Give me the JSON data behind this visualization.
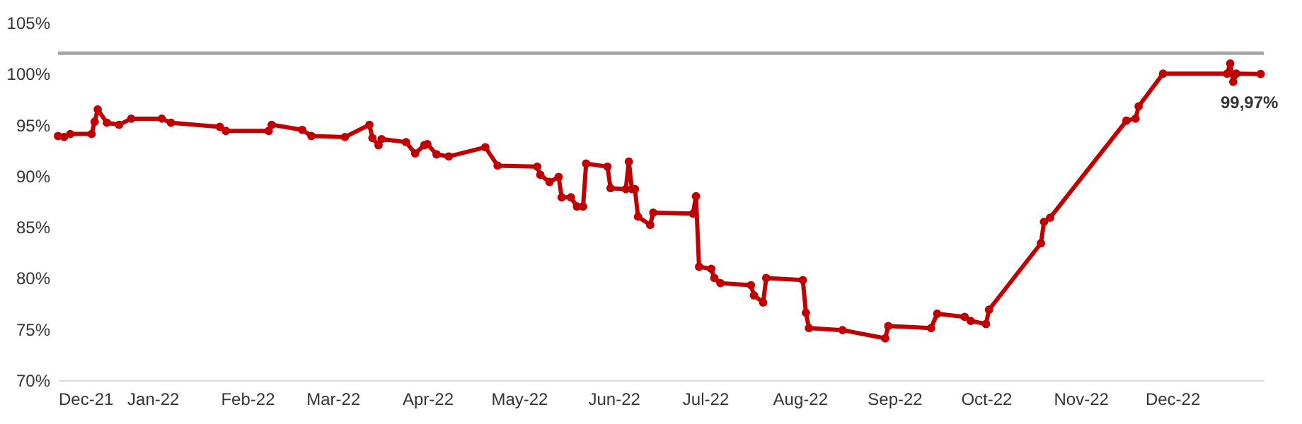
{
  "chart_data": {
    "type": "line",
    "color": "#c00000",
    "marker": "circle",
    "line_style": "solid",
    "grid": false,
    "x": [
      "2021-12-01",
      "2021-12-03",
      "2021-12-05",
      "2021-12-12",
      "2021-12-13",
      "2021-12-14",
      "2021-12-17",
      "2021-12-21",
      "2021-12-25",
      "2022-01-04",
      "2022-01-07",
      "2022-01-23",
      "2022-01-25",
      "2022-02-08",
      "2022-02-09",
      "2022-02-19",
      "2022-02-22",
      "2022-03-05",
      "2022-03-13",
      "2022-03-14",
      "2022-03-16",
      "2022-03-17",
      "2022-03-25",
      "2022-03-28",
      "2022-03-31",
      "2022-04-01",
      "2022-04-04",
      "2022-04-08",
      "2022-04-20",
      "2022-04-24",
      "2022-05-07",
      "2022-05-08",
      "2022-05-11",
      "2022-05-14",
      "2022-05-15",
      "2022-05-18",
      "2022-05-20",
      "2022-05-22",
      "2022-05-23",
      "2022-05-30",
      "2022-05-31",
      "2022-06-05",
      "2022-06-06",
      "2022-06-07",
      "2022-06-08",
      "2022-06-09",
      "2022-06-13",
      "2022-06-14",
      "2022-06-27",
      "2022-06-28",
      "2022-06-29",
      "2022-07-03",
      "2022-07-04",
      "2022-07-06",
      "2022-07-16",
      "2022-07-17",
      "2022-07-20",
      "2022-07-21",
      "2022-08-02",
      "2022-08-03",
      "2022-08-04",
      "2022-08-15",
      "2022-08-29",
      "2022-08-30",
      "2022-09-13",
      "2022-09-15",
      "2022-09-24",
      "2022-09-26",
      "2022-10-01",
      "2022-10-02",
      "2022-10-19",
      "2022-10-20",
      "2022-10-22",
      "2022-11-16",
      "2022-11-19",
      "2022-11-20",
      "2022-11-28",
      "2022-12-19",
      "2022-12-20",
      "2022-12-21",
      "2022-12-22",
      "2022-12-30"
    ],
    "values": [
      93.9,
      93.8,
      94.1,
      94.1,
      95.3,
      96.5,
      95.2,
      95.0,
      95.6,
      95.6,
      95.2,
      94.8,
      94.4,
      94.4,
      95.0,
      94.5,
      93.9,
      93.8,
      95.0,
      93.7,
      93.0,
      93.6,
      93.3,
      92.2,
      93.0,
      93.1,
      92.1,
      91.9,
      92.8,
      91.0,
      90.9,
      90.1,
      89.4,
      89.9,
      87.9,
      87.9,
      87.0,
      87.0,
      91.2,
      90.9,
      88.8,
      88.7,
      91.4,
      88.7,
      88.7,
      86.0,
      85.2,
      86.4,
      86.3,
      88.0,
      81.1,
      80.9,
      80.0,
      79.5,
      79.3,
      78.3,
      77.6,
      80.0,
      79.8,
      76.6,
      75.1,
      74.9,
      74.1,
      75.3,
      75.1,
      76.5,
      76.2,
      75.8,
      75.5,
      76.9,
      83.4,
      85.5,
      85.9,
      95.4,
      95.6,
      96.8,
      100.0,
      100.0,
      101.0,
      99.2,
      100.0,
      99.97
    ],
    "xlim": [
      "2021-12-01",
      "2022-12-31"
    ],
    "xticks": [
      {
        "value": "2021-12-01",
        "label": "Dec-21"
      },
      {
        "value": "2022-01-01",
        "label": "Jan-22"
      },
      {
        "value": "2022-02-01",
        "label": "Feb-22"
      },
      {
        "value": "2022-03-01",
        "label": "Mar-22"
      },
      {
        "value": "2022-04-01",
        "label": "Apr-22"
      },
      {
        "value": "2022-05-01",
        "label": "May-22"
      },
      {
        "value": "2022-06-01",
        "label": "Jun-22"
      },
      {
        "value": "2022-07-01",
        "label": "Jul-22"
      },
      {
        "value": "2022-08-01",
        "label": "Aug-22"
      },
      {
        "value": "2022-09-01",
        "label": "Sep-22"
      },
      {
        "value": "2022-10-01",
        "label": "Oct-22"
      },
      {
        "value": "2022-11-01",
        "label": "Nov-22"
      },
      {
        "value": "2022-12-01",
        "label": "Dec-22"
      }
    ],
    "ylim": [
      70,
      105
    ],
    "yticks": [
      {
        "value": 70,
        "label": "70%"
      },
      {
        "value": 75,
        "label": "75%"
      },
      {
        "value": 80,
        "label": "80%"
      },
      {
        "value": 85,
        "label": "85%"
      },
      {
        "value": 90,
        "label": "90%"
      },
      {
        "value": 95,
        "label": "95%"
      },
      {
        "value": 100,
        "label": "100%"
      },
      {
        "value": 105,
        "label": "105%"
      }
    ],
    "ref_lines": [
      {
        "axis": "y",
        "value": 102,
        "color": "#a6a6a6"
      }
    ],
    "annotations": [
      {
        "text": "99,97%",
        "x": "2022-12-30",
        "y": 99.97
      }
    ]
  }
}
